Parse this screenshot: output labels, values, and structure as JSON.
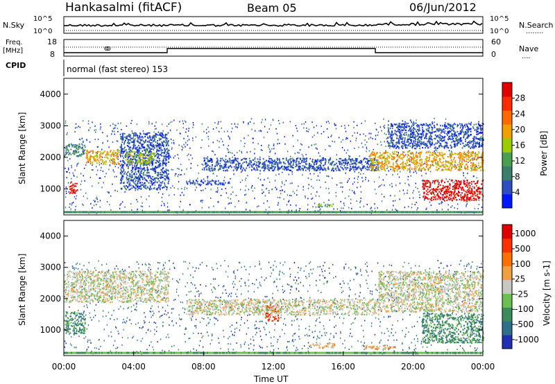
{
  "header": {
    "station": "Hankasalmi (fitACF)",
    "beam": "Beam 05",
    "date": "06/Jun/2012"
  },
  "top_panels": {
    "nsky_label": "N.Sky",
    "nsearch_label": "N.Search",
    "nsearch_legend": "........",
    "exp_top": "10^5",
    "exp_bottom": "10^0",
    "freq_label_1": "Freq.",
    "freq_label_2": "[MHz]",
    "freq_ticks": [
      "18",
      "8"
    ],
    "nave_label": "Nave",
    "nave_legend": "....",
    "nave_ticks": [
      "60",
      "0"
    ],
    "cpid_label": "CPID",
    "cpid_text": "normal (fast stereo) 153"
  },
  "colors": {
    "power": [
      "#0018ff",
      "#2f4fc0",
      "#3a7f6a",
      "#4aa050",
      "#9ccc00",
      "#f0a000",
      "#ff6a00",
      "#ff2a00",
      "#e00000"
    ],
    "velocity": [
      "#2030b0",
      "#2f6f8a",
      "#3a8a5a",
      "#6cc050",
      "#c8c8c0",
      "#f0a040",
      "#ff7000",
      "#ff3000",
      "#e00000"
    ]
  },
  "chart_data": [
    {
      "type": "heatmap",
      "name": "power",
      "ylabel": "Slant Range [km]",
      "colorbar_label": "Power [dB]",
      "ylim": [
        180,
        4500
      ],
      "yticks": [
        "1000",
        "2000",
        "3000",
        "4000"
      ],
      "xlim_hours": [
        0,
        24
      ],
      "colorbar_ticks": [
        "4",
        "8",
        "12",
        "16",
        "20",
        "24",
        "28"
      ],
      "regions": [
        {
          "t0": 0.0,
          "t1": 1.2,
          "r0": 2050,
          "r1": 2450,
          "level": 2
        },
        {
          "t0": 0.3,
          "t1": 0.8,
          "r0": 850,
          "r1": 1250,
          "level": 8
        },
        {
          "t0": 1.2,
          "t1": 3.2,
          "r0": 1800,
          "r1": 2250,
          "level": 5
        },
        {
          "t0": 3.2,
          "t1": 6.0,
          "r0": 1000,
          "r1": 2800,
          "level": 1
        },
        {
          "t0": 3.5,
          "t1": 5.2,
          "r0": 1800,
          "r1": 2200,
          "level": 4
        },
        {
          "t0": 7.0,
          "t1": 9.5,
          "r0": 1150,
          "r1": 1300,
          "level": 1
        },
        {
          "t0": 8.0,
          "t1": 18.0,
          "r0": 1600,
          "r1": 2000,
          "level": 1
        },
        {
          "t0": 14.5,
          "t1": 15.5,
          "r0": 450,
          "r1": 550,
          "level": 3
        },
        {
          "t0": 17.5,
          "t1": 24.0,
          "r0": 1600,
          "r1": 2200,
          "level": 5
        },
        {
          "t0": 20.5,
          "t1": 24.0,
          "r0": 650,
          "r1": 1300,
          "level": 8
        },
        {
          "t0": 18.5,
          "t1": 24.0,
          "r0": 2300,
          "r1": 3100,
          "level": 1
        }
      ]
    },
    {
      "type": "heatmap",
      "name": "velocity",
      "ylabel": "Slant Range [km]",
      "colorbar_label": "Velocity [m s-1]",
      "ylim": [
        180,
        4500
      ],
      "yticks": [
        "1000",
        "2000",
        "3000",
        "4000"
      ],
      "xlim_hours": [
        0,
        24
      ],
      "xticks": [
        "00:00",
        "04:00",
        "08:00",
        "12:00",
        "16:00",
        "20:00",
        "00:00"
      ],
      "xlabel": "Time UT",
      "colorbar_ticks": [
        "1000",
        "500",
        "100",
        "25",
        "-25",
        "-100",
        "-500",
        "-1000"
      ],
      "regions": [
        {
          "t0": 0.0,
          "t1": 6.0,
          "r0": 1900,
          "r1": 2900,
          "level": 4
        },
        {
          "t0": 0.0,
          "t1": 1.2,
          "r0": 900,
          "r1": 1600,
          "level": 2
        },
        {
          "t0": 11.5,
          "t1": 12.3,
          "r0": 1300,
          "r1": 1800,
          "level": 7
        },
        {
          "t0": 14.0,
          "t1": 15.5,
          "r0": 450,
          "r1": 600,
          "level": 5
        },
        {
          "t0": 17.0,
          "t1": 19.0,
          "r0": 400,
          "r1": 520,
          "level": 5
        },
        {
          "t0": 7.0,
          "t1": 18.0,
          "r0": 1500,
          "r1": 2000,
          "level": 4
        },
        {
          "t0": 18.0,
          "t1": 24.0,
          "r0": 1600,
          "r1": 2900,
          "level": 4
        },
        {
          "t0": 20.5,
          "t1": 24.0,
          "r0": 600,
          "r1": 1550,
          "level": 2
        }
      ]
    }
  ]
}
